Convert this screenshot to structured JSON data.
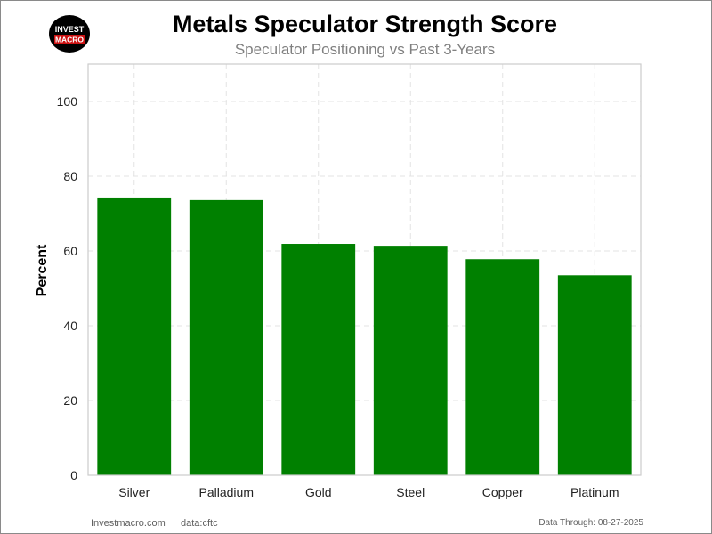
{
  "header": {
    "title": "Metals Speculator Strength Score",
    "subtitle": "Speculator Positioning vs Past 3-Years"
  },
  "logo": {
    "line1": "INVEST",
    "line2": "MACRO",
    "color_bg": "#000000",
    "color_accent": "#cc1111"
  },
  "footer": {
    "site": "Investmacro.com",
    "source": "data:cftc",
    "date": "Data Through: 08-27-2025"
  },
  "chart_data": {
    "type": "bar",
    "title": "Metals Speculator Strength Score",
    "subtitle": "Speculator Positioning vs Past 3-Years",
    "xlabel": "",
    "ylabel": "Percent",
    "categories": [
      "Silver",
      "Palladium",
      "Gold",
      "Steel",
      "Copper",
      "Platinum"
    ],
    "values": [
      74.3,
      73.6,
      61.9,
      61.4,
      57.8,
      53.5
    ],
    "ylim": [
      0,
      110
    ],
    "yticks": [
      0,
      20,
      40,
      60,
      80,
      100
    ],
    "bar_color": "#008000",
    "grid": true,
    "legend": "none"
  }
}
